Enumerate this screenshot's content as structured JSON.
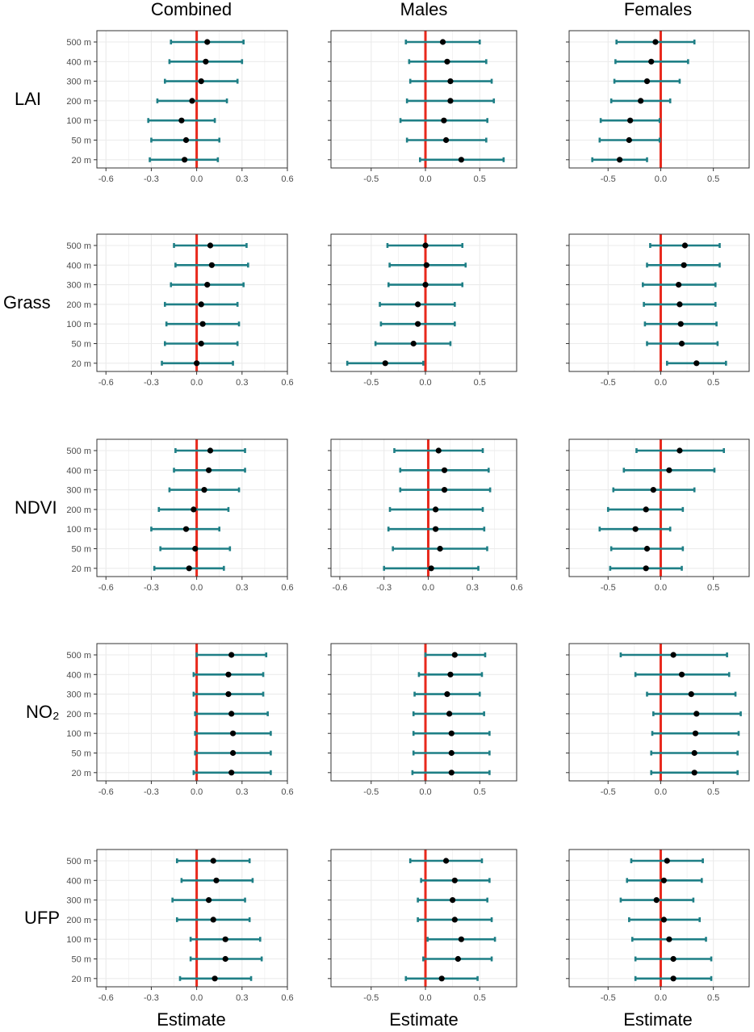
{
  "columns": [
    "Combined",
    "Males",
    "Females"
  ],
  "rows": [
    "LAI",
    "Grass",
    "NDVI",
    "NO₂",
    "UFP"
  ],
  "x_axis_title": "Estimate",
  "colors": {
    "zero_line": "#e8291c",
    "ci": "#1f7f86",
    "point": "#000000",
    "panel_border": "#333333",
    "grid": "#ebebeb"
  },
  "chart_data": {
    "type": "forest",
    "y_categories": [
      "500 m",
      "400 m",
      "300 m",
      "200 m",
      "100 m",
      "50 m",
      "20 m"
    ],
    "axes": {
      "combined": {
        "xlim": [
          -0.66,
          0.6
        ],
        "ticks": [
          -0.6,
          -0.3,
          0.0,
          0.3,
          0.6
        ],
        "tick_labels": [
          "-0.6",
          "-0.3",
          "0.0",
          "0.3",
          "0.6"
        ]
      },
      "males_a": {
        "xlim": [
          -0.87,
          0.84
        ],
        "ticks": [
          -0.5,
          0.0,
          0.5
        ],
        "tick_labels": [
          "-0.5",
          "0.0",
          "0.5"
        ]
      },
      "males_b": {
        "xlim": [
          -0.66,
          0.6
        ],
        "ticks": [
          -0.6,
          -0.3,
          0.0,
          0.3,
          0.6
        ],
        "tick_labels": [
          "-0.6",
          "-0.3",
          "0.0",
          "0.3",
          "0.6"
        ]
      },
      "females": {
        "xlim": [
          -0.87,
          0.84
        ],
        "ticks": [
          -0.5,
          0.0,
          0.5
        ],
        "tick_labels": [
          "-0.5",
          "0.0",
          "0.5"
        ]
      }
    },
    "panels": [
      {
        "row": "LAI",
        "column": "Combined",
        "axis": "combined",
        "estimates": [
          0.07,
          0.06,
          0.03,
          -0.03,
          -0.1,
          -0.07,
          -0.08
        ],
        "lower": [
          -0.17,
          -0.18,
          -0.21,
          -0.26,
          -0.32,
          -0.3,
          -0.31
        ],
        "upper": [
          0.31,
          0.3,
          0.27,
          0.2,
          0.12,
          0.15,
          0.14
        ]
      },
      {
        "row": "LAI",
        "column": "Males",
        "axis": "males_a",
        "estimates": [
          0.16,
          0.2,
          0.23,
          0.23,
          0.17,
          0.19,
          0.33
        ],
        "lower": [
          -0.18,
          -0.15,
          -0.14,
          -0.17,
          -0.23,
          -0.17,
          -0.05
        ],
        "upper": [
          0.5,
          0.56,
          0.61,
          0.63,
          0.57,
          0.56,
          0.72
        ]
      },
      {
        "row": "LAI",
        "column": "Females",
        "axis": "females",
        "estimates": [
          -0.05,
          -0.09,
          -0.13,
          -0.19,
          -0.29,
          -0.3,
          -0.39
        ],
        "lower": [
          -0.42,
          -0.43,
          -0.44,
          -0.47,
          -0.57,
          -0.58,
          -0.65
        ],
        "upper": [
          0.32,
          0.26,
          0.18,
          0.09,
          -0.01,
          -0.01,
          -0.13
        ]
      },
      {
        "row": "Grass",
        "column": "Combined",
        "axis": "combined",
        "estimates": [
          0.09,
          0.1,
          0.07,
          0.03,
          0.04,
          0.03,
          0.0
        ],
        "lower": [
          -0.15,
          -0.14,
          -0.17,
          -0.21,
          -0.2,
          -0.21,
          -0.23
        ],
        "upper": [
          0.33,
          0.34,
          0.31,
          0.27,
          0.28,
          0.27,
          0.24
        ]
      },
      {
        "row": "Grass",
        "column": "Males",
        "axis": "males_a",
        "estimates": [
          0.0,
          0.01,
          0.0,
          -0.07,
          -0.07,
          -0.11,
          -0.37
        ],
        "lower": [
          -0.35,
          -0.33,
          -0.34,
          -0.42,
          -0.41,
          -0.46,
          -0.72
        ],
        "upper": [
          0.34,
          0.37,
          0.34,
          0.27,
          0.27,
          0.23,
          -0.02
        ]
      },
      {
        "row": "Grass",
        "column": "Females",
        "axis": "females",
        "estimates": [
          0.23,
          0.22,
          0.17,
          0.18,
          0.19,
          0.2,
          0.34
        ],
        "lower": [
          -0.1,
          -0.13,
          -0.17,
          -0.16,
          -0.15,
          -0.13,
          0.06
        ],
        "upper": [
          0.56,
          0.56,
          0.52,
          0.52,
          0.53,
          0.54,
          0.62
        ]
      },
      {
        "row": "NDVI",
        "column": "Combined",
        "axis": "combined",
        "estimates": [
          0.09,
          0.08,
          0.05,
          -0.02,
          -0.07,
          -0.01,
          -0.05
        ],
        "lower": [
          -0.14,
          -0.15,
          -0.18,
          -0.25,
          -0.3,
          -0.24,
          -0.28
        ],
        "upper": [
          0.32,
          0.32,
          0.28,
          0.21,
          0.15,
          0.22,
          0.18
        ]
      },
      {
        "row": "NDVI",
        "column": "Males",
        "axis": "males_b",
        "estimates": [
          0.07,
          0.11,
          0.11,
          0.05,
          0.05,
          0.08,
          0.02
        ],
        "lower": [
          -0.23,
          -0.19,
          -0.19,
          -0.26,
          -0.27,
          -0.24,
          -0.3
        ],
        "upper": [
          0.37,
          0.41,
          0.42,
          0.37,
          0.38,
          0.4,
          0.34
        ]
      },
      {
        "row": "NDVI",
        "column": "Females",
        "axis": "females",
        "estimates": [
          0.18,
          0.08,
          -0.07,
          -0.14,
          -0.24,
          -0.13,
          -0.14
        ],
        "lower": [
          -0.23,
          -0.35,
          -0.45,
          -0.5,
          -0.58,
          -0.47,
          -0.48
        ],
        "upper": [
          0.6,
          0.51,
          0.32,
          0.21,
          0.09,
          0.21,
          0.2
        ]
      },
      {
        "row": "NO₂",
        "column": "Combined",
        "axis": "combined",
        "estimates": [
          0.23,
          0.21,
          0.21,
          0.23,
          0.24,
          0.24,
          0.23
        ],
        "lower": [
          0.0,
          -0.02,
          -0.02,
          -0.01,
          -0.01,
          -0.01,
          -0.02
        ],
        "upper": [
          0.46,
          0.44,
          0.44,
          0.47,
          0.49,
          0.49,
          0.49
        ]
      },
      {
        "row": "NO₂",
        "column": "Males",
        "axis": "males_a",
        "estimates": [
          0.27,
          0.23,
          0.2,
          0.22,
          0.24,
          0.24,
          0.24
        ],
        "lower": [
          0.0,
          -0.06,
          -0.1,
          -0.11,
          -0.11,
          -0.11,
          -0.12
        ],
        "upper": [
          0.55,
          0.52,
          0.5,
          0.54,
          0.59,
          0.59,
          0.59
        ]
      },
      {
        "row": "NO₂",
        "column": "Females",
        "axis": "females",
        "estimates": [
          0.12,
          0.2,
          0.29,
          0.34,
          0.33,
          0.32,
          0.32
        ],
        "lower": [
          -0.38,
          -0.24,
          -0.13,
          -0.07,
          -0.08,
          -0.09,
          -0.09
        ],
        "upper": [
          0.63,
          0.65,
          0.71,
          0.76,
          0.74,
          0.73,
          0.73
        ]
      },
      {
        "row": "UFP",
        "column": "Combined",
        "axis": "combined",
        "estimates": [
          0.11,
          0.13,
          0.08,
          0.11,
          0.19,
          0.19,
          0.12
        ],
        "lower": [
          -0.13,
          -0.1,
          -0.16,
          -0.13,
          -0.04,
          -0.04,
          -0.11
        ],
        "upper": [
          0.35,
          0.37,
          0.32,
          0.35,
          0.42,
          0.43,
          0.36
        ]
      },
      {
        "row": "UFP",
        "column": "Males",
        "axis": "males_a",
        "estimates": [
          0.19,
          0.27,
          0.25,
          0.27,
          0.33,
          0.3,
          0.15
        ],
        "lower": [
          -0.14,
          -0.04,
          -0.07,
          -0.07,
          0.02,
          -0.02,
          -0.18
        ],
        "upper": [
          0.52,
          0.59,
          0.57,
          0.61,
          0.64,
          0.61,
          0.48
        ]
      },
      {
        "row": "UFP",
        "column": "Females",
        "axis": "females",
        "estimates": [
          0.06,
          0.03,
          -0.04,
          0.03,
          0.08,
          0.12,
          0.12
        ],
        "lower": [
          -0.28,
          -0.32,
          -0.38,
          -0.3,
          -0.27,
          -0.24,
          -0.24
        ],
        "upper": [
          0.4,
          0.39,
          0.31,
          0.37,
          0.43,
          0.48,
          0.48
        ]
      }
    ]
  }
}
